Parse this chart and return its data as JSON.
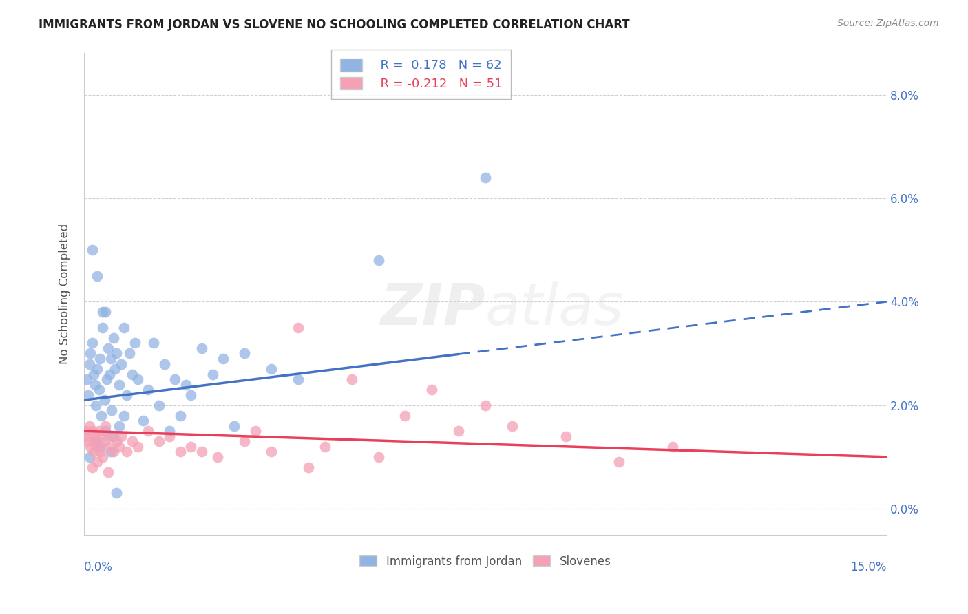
{
  "title": "IMMIGRANTS FROM JORDAN VS SLOVENE NO SCHOOLING COMPLETED CORRELATION CHART",
  "source": "Source: ZipAtlas.com",
  "ylabel": "No Schooling Completed",
  "ytick_vals": [
    0.0,
    2.0,
    4.0,
    6.0,
    8.0
  ],
  "xlim": [
    0.0,
    15.0
  ],
  "ylim": [
    -0.5,
    8.8
  ],
  "color_jordan": "#92b4e3",
  "color_slovene": "#f4a0b5",
  "trendline_jordan_color": "#4472c4",
  "trendline_slovene_color": "#e8405a",
  "jordan_trendline": [
    2.1,
    4.0
  ],
  "slovene_trendline": [
    1.5,
    1.0
  ],
  "jordan_trendline_switch_x": 7.0,
  "jordan_x": [
    0.05,
    0.08,
    0.1,
    0.12,
    0.15,
    0.18,
    0.2,
    0.22,
    0.25,
    0.28,
    0.3,
    0.32,
    0.35,
    0.38,
    0.4,
    0.42,
    0.45,
    0.48,
    0.5,
    0.52,
    0.55,
    0.58,
    0.6,
    0.65,
    0.7,
    0.75,
    0.8,
    0.85,
    0.9,
    0.95,
    1.0,
    1.1,
    1.2,
    1.3,
    1.4,
    1.5,
    1.6,
    1.7,
    1.8,
    1.9,
    2.0,
    2.2,
    2.4,
    2.6,
    2.8,
    3.0,
    3.5,
    4.0,
    0.1,
    0.2,
    0.3,
    0.4,
    0.5,
    0.15,
    0.25,
    0.35,
    0.55,
    0.65,
    0.75,
    7.5,
    0.6,
    5.5
  ],
  "jordan_y": [
    2.5,
    2.2,
    2.8,
    3.0,
    3.2,
    2.6,
    2.4,
    2.0,
    2.7,
    2.3,
    2.9,
    1.8,
    3.5,
    2.1,
    3.8,
    2.5,
    3.1,
    2.6,
    2.9,
    1.9,
    3.3,
    2.7,
    3.0,
    2.4,
    2.8,
    3.5,
    2.2,
    3.0,
    2.6,
    3.2,
    2.5,
    1.7,
    2.3,
    3.2,
    2.0,
    2.8,
    1.5,
    2.5,
    1.8,
    2.4,
    2.2,
    3.1,
    2.6,
    2.9,
    1.6,
    3.0,
    2.7,
    2.5,
    1.0,
    1.3,
    1.2,
    1.5,
    1.1,
    5.0,
    4.5,
    3.8,
    1.4,
    1.6,
    1.8,
    6.4,
    0.3,
    4.8
  ],
  "slovene_x": [
    0.02,
    0.05,
    0.08,
    0.1,
    0.12,
    0.15,
    0.18,
    0.2,
    0.22,
    0.25,
    0.28,
    0.3,
    0.35,
    0.38,
    0.4,
    0.45,
    0.5,
    0.55,
    0.6,
    0.65,
    0.7,
    0.8,
    0.9,
    1.0,
    1.2,
    1.4,
    1.6,
    1.8,
    2.0,
    2.5,
    3.0,
    3.5,
    4.0,
    4.5,
    5.0,
    5.5,
    6.0,
    6.5,
    7.0,
    7.5,
    8.0,
    9.0,
    10.0,
    11.0,
    0.15,
    0.25,
    0.35,
    0.45,
    2.2,
    3.2,
    4.2
  ],
  "slovene_y": [
    1.5,
    1.4,
    1.3,
    1.6,
    1.2,
    1.5,
    1.1,
    1.4,
    1.3,
    1.2,
    1.5,
    1.1,
    1.4,
    1.3,
    1.6,
    1.2,
    1.4,
    1.1,
    1.3,
    1.2,
    1.4,
    1.1,
    1.3,
    1.2,
    1.5,
    1.3,
    1.4,
    1.1,
    1.2,
    1.0,
    1.3,
    1.1,
    3.5,
    1.2,
    2.5,
    1.0,
    1.8,
    2.3,
    1.5,
    2.0,
    1.6,
    1.4,
    0.9,
    1.2,
    0.8,
    0.9,
    1.0,
    0.7,
    1.1,
    1.5,
    0.8
  ]
}
